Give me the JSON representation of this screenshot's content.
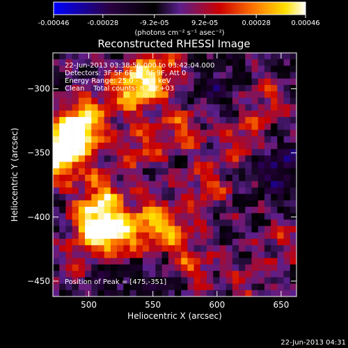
{
  "chart_data": {
    "type": "heatmap",
    "title": "Reconstructed RHESSI Image",
    "xlabel": "Heliocentric X (arcsec)",
    "ylabel": "Heliocentric Y (arcsec)",
    "xlim": [
      472,
      662
    ],
    "ylim": [
      -462,
      -272
    ],
    "x_ticks": [
      500,
      550,
      600,
      650
    ],
    "y_ticks": [
      -300,
      -350,
      -400,
      -450
    ],
    "colorbar": {
      "min": -0.00046,
      "max": 0.00046,
      "tick_values": [
        -0.00046,
        -0.00028,
        -9.2e-05,
        9.2e-05,
        0.00028,
        0.00046
      ],
      "tick_labels": [
        "-0.00046",
        "-0.00028",
        "-9.2e-05",
        "9.2e-05",
        "0.00028",
        "0.00046"
      ],
      "units": "(photons cm⁻² s⁻¹ asec⁻²)",
      "colors": [
        "#0000ff",
        "#2b0044",
        "#000000",
        "#5a1f8c",
        "#cc0000",
        "#ff7a00",
        "#ffe000",
        "#ffffff"
      ]
    },
    "annotations": {
      "time_range": "22-Jun-2013 03:38:56.000 to 03:42:04.000",
      "detectors": "Detectors: 3F 5F 6F 7F 8F 9F, Att 0",
      "energy": "Energy Range: 25.0 - 50.0 keV",
      "clean": "Clean    Total counts: 8.23E+03",
      "peak": "Position of Peak = [475,-351]"
    },
    "peak_position": [
      475,
      -351
    ],
    "hotspots": [
      {
        "x": 476,
        "y": -352,
        "v": 1.0
      },
      {
        "x": 488,
        "y": -336,
        "v": 0.85
      },
      {
        "x": 500,
        "y": -322,
        "v": 0.55
      },
      {
        "x": 535,
        "y": -300,
        "v": 0.8
      },
      {
        "x": 553,
        "y": -287,
        "v": 0.6
      },
      {
        "x": 505,
        "y": -405,
        "v": 0.85
      },
      {
        "x": 520,
        "y": -415,
        "v": 0.75
      },
      {
        "x": 548,
        "y": -402,
        "v": 0.55
      },
      {
        "x": 565,
        "y": -412,
        "v": 0.5
      },
      {
        "x": 510,
        "y": -380,
        "v": 0.5
      },
      {
        "x": 540,
        "y": -345,
        "v": 0.45
      },
      {
        "x": 575,
        "y": -330,
        "v": 0.45
      },
      {
        "x": 592,
        "y": -375,
        "v": 0.4
      },
      {
        "x": 620,
        "y": -340,
        "v": 0.35
      },
      {
        "x": 640,
        "y": -310,
        "v": 0.35
      },
      {
        "x": 580,
        "y": -440,
        "v": 0.45
      },
      {
        "x": 625,
        "y": -455,
        "v": 0.3
      },
      {
        "x": 650,
        "y": -420,
        "v": 0.3
      },
      {
        "x": 490,
        "y": -440,
        "v": 0.3
      }
    ],
    "cold_spots": [
      {
        "x": 648,
        "y": -363,
        "v": -0.5
      },
      {
        "x": 515,
        "y": -448,
        "v": -0.3
      },
      {
        "x": 600,
        "y": -300,
        "v": -0.25
      },
      {
        "x": 560,
        "y": -455,
        "v": -0.25
      }
    ]
  },
  "footer": {
    "date_stamp": "22-Jun-2013 04:31"
  }
}
